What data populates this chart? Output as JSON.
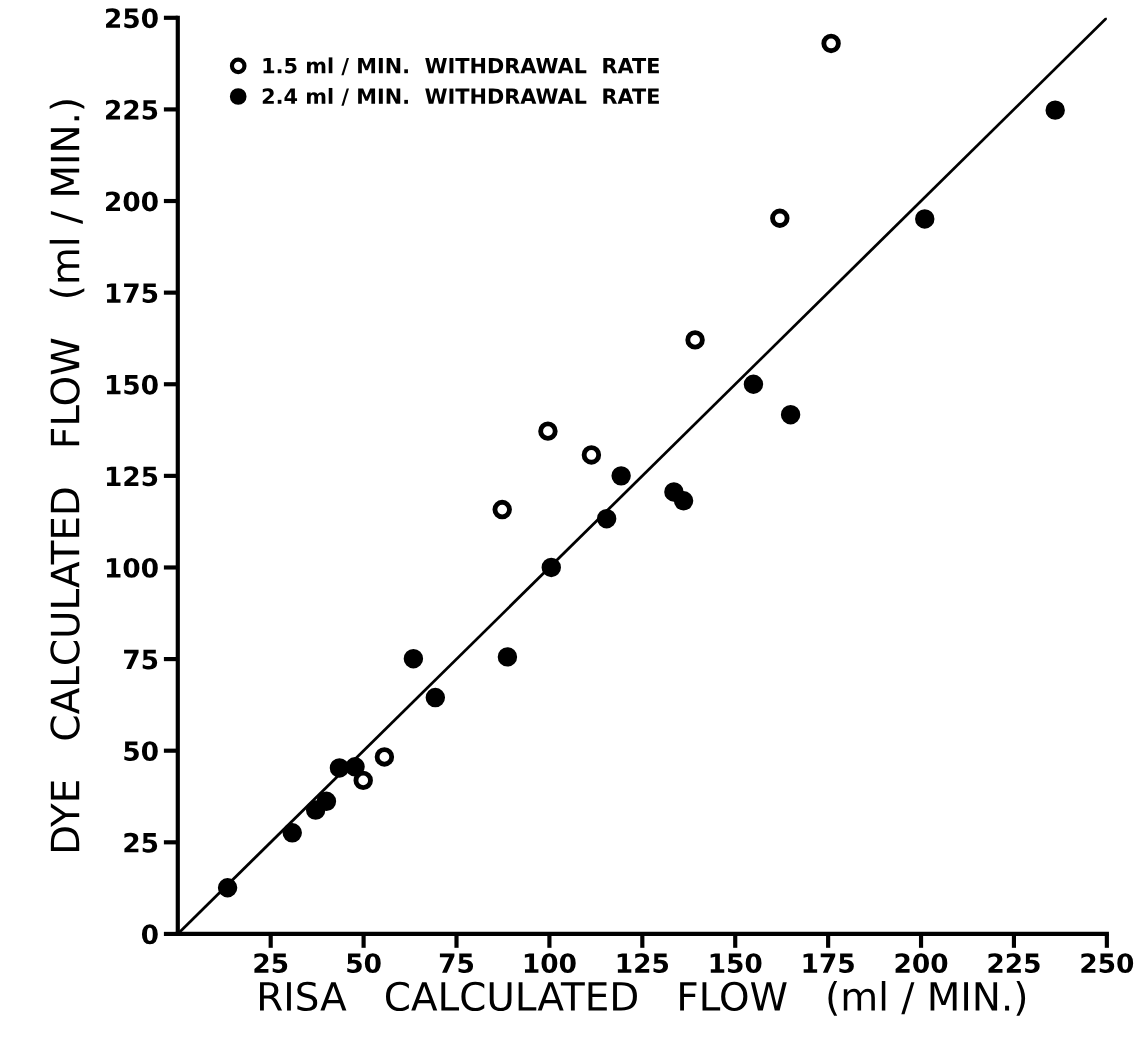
{
  "chart_data": {
    "type": "scatter",
    "xlabel": "RISA   CALCULATED   FLOW   (ml / MIN.)",
    "ylabel": "DYE   CALCULATED   FLOW   (ml / MIN.)",
    "xlim": [
      0,
      250
    ],
    "ylim": [
      0,
      250
    ],
    "xticks": [
      25,
      50,
      75,
      100,
      125,
      150,
      175,
      200,
      225,
      250
    ],
    "yticks": [
      0,
      25,
      50,
      75,
      100,
      125,
      150,
      175,
      200,
      225,
      250
    ],
    "grid": false,
    "legend": "top left",
    "marker": "circle",
    "series": [
      {
        "name": "1.5 ml / MIN.  WITHDRAWAL  RATE",
        "color": "#ffffff",
        "x": [
          175.8,
          162.0,
          139.2,
          99.6,
          111.3,
          87.3,
          55.6,
          49.9
        ],
        "values": [
          243.0,
          195.3,
          162.1,
          137.2,
          130.7,
          115.8,
          48.3,
          41.9
        ]
      },
      {
        "name": "2.4 ml / MIN.  WITHDRAWAL  RATE",
        "color": "#000000",
        "x": [
          201.0,
          236.1,
          154.9,
          164.9,
          119.3,
          133.5,
          136.1,
          115.4,
          100.5,
          88.7,
          63.4,
          69.3,
          43.5,
          47.7,
          40.0,
          37.1,
          30.8,
          13.4
        ],
        "values": [
          195.1,
          224.8,
          150.0,
          141.7,
          125.0,
          120.6,
          118.2,
          113.3,
          100.0,
          75.6,
          75.1,
          64.5,
          45.3,
          45.6,
          36.2,
          33.8,
          27.6,
          12.6
        ]
      },
      {
        "type": "line",
        "color": "#000000",
        "marker": "none",
        "x": [
          0,
          250
        ],
        "values": [
          0,
          250
        ]
      }
    ]
  }
}
